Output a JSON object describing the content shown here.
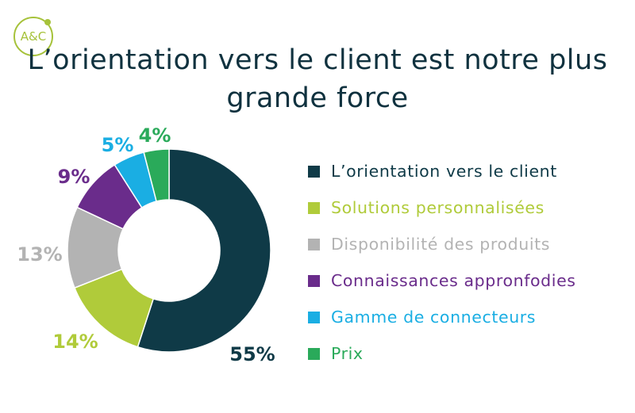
{
  "logo": {
    "text": "A&C",
    "color": "#a6c23a"
  },
  "title": {
    "line1": "L’orientation vers le client est notre plus",
    "line2": "grande force",
    "color": "#10323f"
  },
  "chart_data": {
    "type": "pie",
    "donut": true,
    "legend_position": "right",
    "slices": [
      {
        "label": "L’orientation vers le client",
        "value": 55,
        "value_label": "55%",
        "color": "#0f3a47"
      },
      {
        "label": "Solutions personnalisées",
        "value": 14,
        "value_label": "14%",
        "color": "#b0cb3a"
      },
      {
        "label": "Disponibilité des produits",
        "value": 13,
        "value_label": "13%",
        "color": "#b3b3b3"
      },
      {
        "label": "Connaissances appronfodies",
        "value": 9,
        "value_label": "9%",
        "color": "#6a2c8b"
      },
      {
        "label": "Gamme de connecteurs",
        "value": 5,
        "value_label": "5%",
        "color": "#1aaee3"
      },
      {
        "label": "Prix",
        "value": 4,
        "value_label": "4%",
        "color": "#2aaa5a"
      }
    ]
  }
}
